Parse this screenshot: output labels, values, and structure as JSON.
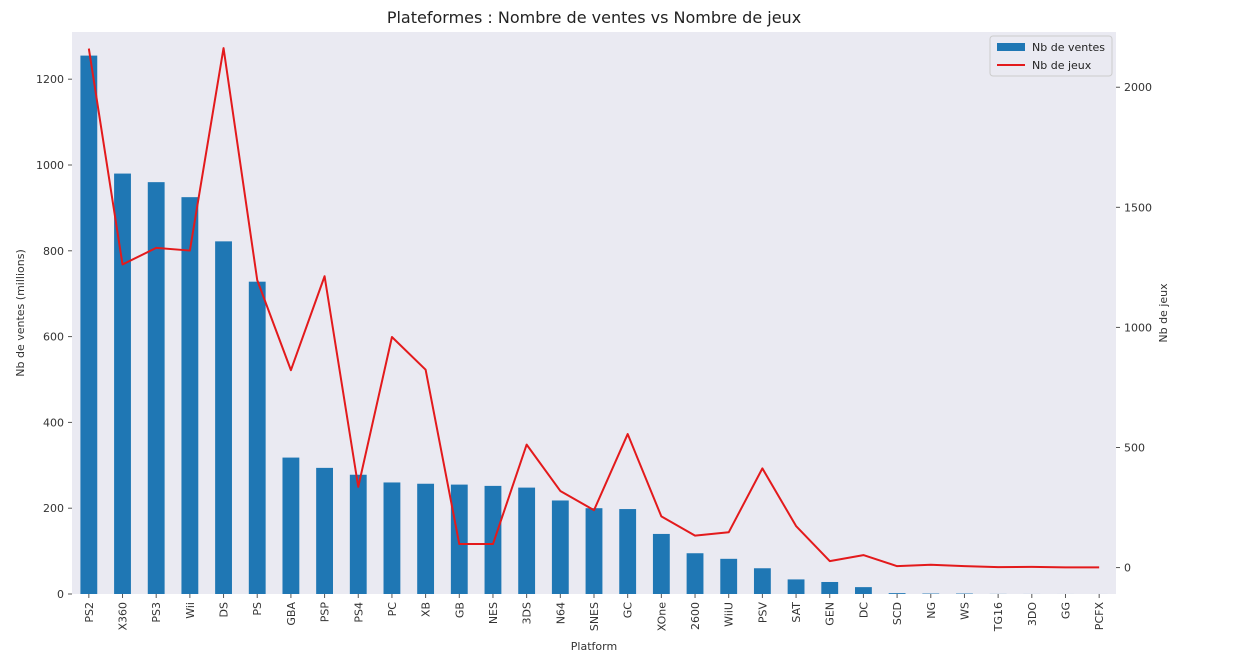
{
  "chart_data": {
    "type": "bar",
    "title": "Plateformes : Nombre de ventes vs Nombre de jeux",
    "xlabel": "Platform",
    "ylabel": "Nb de ventes (millions)",
    "y2label": "Nb de jeux",
    "ylim": [
      0,
      1310
    ],
    "y2lim": [
      -110,
      2230
    ],
    "yticks": [
      0,
      200,
      400,
      600,
      800,
      1000,
      1200
    ],
    "y2ticks": [
      0,
      500,
      1000,
      1500,
      2000
    ],
    "grid": false,
    "legend_position": "top-right",
    "categories": [
      "PS2",
      "X360",
      "PS3",
      "Wii",
      "DS",
      "PS",
      "GBA",
      "PSP",
      "PS4",
      "PC",
      "XB",
      "GB",
      "NES",
      "3DS",
      "N64",
      "SNES",
      "GC",
      "XOne",
      "2600",
      "WiiU",
      "PSV",
      "SAT",
      "GEN",
      "DC",
      "SCD",
      "NG",
      "WS",
      "TG16",
      "3DO",
      "GG",
      "PCFX"
    ],
    "series": [
      {
        "name": "Nb de ventes",
        "type": "bar",
        "axis": "left",
        "color": "#1f77b4",
        "values": [
          1255,
          980,
          960,
          925,
          822,
          728,
          318,
          294,
          278,
          260,
          257,
          255,
          252,
          248,
          218,
          200,
          198,
          140,
          95,
          82,
          60,
          34,
          28,
          16,
          2,
          1,
          1,
          0.2,
          0.1,
          0.04,
          0.03
        ]
      },
      {
        "name": "Nb de jeux",
        "type": "line",
        "axis": "right",
        "color": "#e31a1c",
        "values": [
          2161,
          1262,
          1331,
          1320,
          2163,
          1197,
          822,
          1213,
          336,
          960,
          824,
          98,
          98,
          512,
          319,
          239,
          556,
          213,
          133,
          147,
          413,
          173,
          27,
          52,
          6,
          12,
          6,
          2,
          3,
          1,
          1
        ]
      }
    ]
  }
}
